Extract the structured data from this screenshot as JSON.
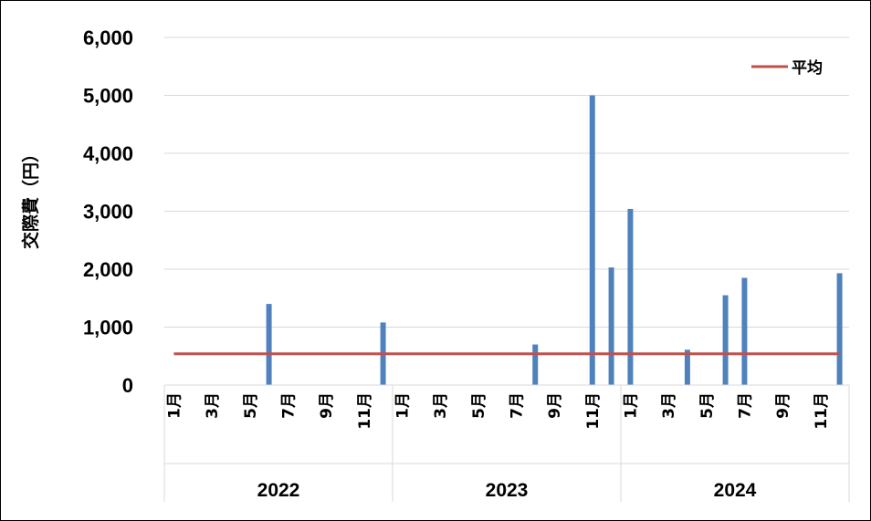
{
  "chart_data": {
    "type": "bar",
    "ylabel": "交際費（円）",
    "ylim": [
      0,
      6000
    ],
    "yticks": [
      "0",
      "1,000",
      "2,000",
      "3,000",
      "4,000",
      "5,000",
      "6,000"
    ],
    "grid": true,
    "legend_position": "top-right",
    "month_labels": [
      "1月",
      "",
      "3月",
      "",
      "5月",
      "",
      "7月",
      "",
      "9月",
      "",
      "11月",
      ""
    ],
    "years": [
      "2022",
      "2023",
      "2024"
    ],
    "series": [
      {
        "type": "bar",
        "color": "#4f81bd",
        "values": [
          0,
          0,
          0,
          0,
          0,
          1400,
          0,
          0,
          0,
          0,
          0,
          1080,
          0,
          0,
          0,
          0,
          0,
          0,
          0,
          700,
          0,
          0,
          5000,
          2030,
          3040,
          0,
          0,
          610,
          0,
          1550,
          1850,
          0,
          0,
          0,
          0,
          1930
        ]
      },
      {
        "type": "line",
        "name": "平均",
        "color": "#c0504d",
        "value": 540
      }
    ]
  }
}
